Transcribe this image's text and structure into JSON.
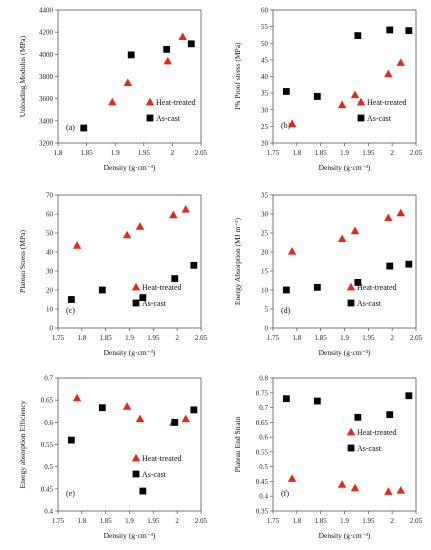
{
  "chart_data": [
    {
      "type": "scatter",
      "panel_label": "(a)",
      "xlabel": "Density (g·cm⁻³)",
      "ylabel": "Unloading Modulus (MPa)",
      "xlim": [
        1.8,
        2.05
      ],
      "ylim": [
        3200,
        4400
      ],
      "x_ticks": [
        1.8,
        1.85,
        1.9,
        1.95,
        2.0,
        2.05
      ],
      "x_tick_labels": [
        "1.8",
        "1.85",
        "1.9",
        "1.95",
        "2",
        "2.05"
      ],
      "y_ticks": [
        3200,
        3400,
        3600,
        3800,
        4000,
        4200,
        4400
      ],
      "y_tick_labels": [
        "3200",
        "3400",
        "3600",
        "3800",
        "4000",
        "4200",
        "4400"
      ],
      "legend_position": "right",
      "series": [
        {
          "name": "Heat-treated",
          "marker": "triangle",
          "color": "#e8261e",
          "x": [
            1.895,
            1.922,
            1.992,
            2.018
          ],
          "y": [
            3570,
            3745,
            3940,
            4160
          ]
        },
        {
          "name": "As-cast",
          "marker": "square",
          "color": "#000000",
          "x": [
            1.845,
            1.928,
            1.99,
            2.033
          ],
          "y": [
            3335,
            3995,
            4045,
            4095
          ]
        }
      ]
    },
    {
      "type": "scatter",
      "panel_label": "(b)",
      "xlabel": "Density (g·cm⁻³)",
      "ylabel": "1% Proof stress (MPa)",
      "xlim": [
        1.75,
        2.05
      ],
      "ylim": [
        20,
        60
      ],
      "x_ticks": [
        1.75,
        1.8,
        1.85,
        1.9,
        1.95,
        2.0,
        2.05
      ],
      "x_tick_labels": [
        "1.75",
        "1.8",
        "1.85",
        "1.9",
        "1.95",
        "2",
        "2.05"
      ],
      "y_ticks": [
        20,
        25,
        30,
        35,
        40,
        45,
        50,
        55,
        60
      ],
      "y_tick_labels": [
        "20",
        "25",
        "30",
        "35",
        "40",
        "45",
        "50",
        "55",
        "60"
      ],
      "legend_position": "right",
      "series": [
        {
          "name": "Heat-treated",
          "marker": "triangle",
          "color": "#e8261e",
          "x": [
            1.79,
            1.895,
            1.922,
            1.992,
            2.018
          ],
          "y": [
            25.8,
            31.5,
            34.5,
            40.8,
            44.2
          ]
        },
        {
          "name": "As-cast",
          "marker": "square",
          "color": "#000000",
          "x": [
            1.778,
            1.843,
            1.928,
            1.995,
            2.035
          ],
          "y": [
            35.5,
            34.0,
            52.3,
            54.0,
            53.8
          ]
        }
      ]
    },
    {
      "type": "scatter",
      "panel_label": "(c)",
      "xlabel": "Density (g·cm⁻³)",
      "ylabel": "Plateau Stress (MPa)",
      "xlim": [
        1.75,
        2.05
      ],
      "ylim": [
        0,
        70
      ],
      "x_ticks": [
        1.75,
        1.8,
        1.85,
        1.9,
        1.95,
        2.0,
        2.05
      ],
      "x_tick_labels": [
        "1.75",
        "1.8",
        "1.85",
        "1.9",
        "1.95",
        "2",
        "2.05"
      ],
      "y_ticks": [
        0,
        10,
        20,
        30,
        40,
        50,
        60,
        70
      ],
      "y_tick_labels": [
        "0",
        "10",
        "20",
        "30",
        "40",
        "50",
        "60",
        "70"
      ],
      "legend_position": "right",
      "series": [
        {
          "name": "Heat-treated",
          "marker": "triangle",
          "color": "#e8261e",
          "x": [
            1.79,
            1.895,
            1.922,
            1.992,
            2.018
          ],
          "y": [
            43.5,
            49.0,
            53.5,
            59.5,
            62.5
          ]
        },
        {
          "name": "As-cast",
          "marker": "square",
          "color": "#000000",
          "x": [
            1.778,
            1.843,
            1.928,
            1.995,
            2.035
          ],
          "y": [
            15.0,
            20.0,
            16.0,
            26.0,
            33.0
          ]
        }
      ]
    },
    {
      "type": "scatter",
      "panel_label": "(d)",
      "xlabel": "Density (g·cm⁻³)",
      "ylabel": "Energy Absorption (MJ m⁻³)",
      "xlim": [
        1.75,
        2.05
      ],
      "ylim": [
        0,
        35
      ],
      "x_ticks": [
        1.75,
        1.8,
        1.85,
        1.9,
        1.95,
        2.0,
        2.05
      ],
      "x_tick_labels": [
        "1.75",
        "1.8",
        "1.85",
        "1.9",
        "1.95",
        "2",
        "2.05"
      ],
      "y_ticks": [
        0,
        5,
        10,
        15,
        20,
        25,
        30,
        35
      ],
      "y_tick_labels": [
        "0",
        "5",
        "10",
        "15",
        "20",
        "25",
        "30",
        "35"
      ],
      "legend_position": "right",
      "series": [
        {
          "name": "Heat-treated",
          "marker": "triangle",
          "color": "#e8261e",
          "x": [
            1.79,
            1.895,
            1.922,
            1.992,
            2.018
          ],
          "y": [
            20.2,
            23.5,
            25.6,
            29.0,
            30.3
          ]
        },
        {
          "name": "As-cast",
          "marker": "square",
          "color": "#000000",
          "x": [
            1.778,
            1.843,
            1.928,
            1.995,
            2.035
          ],
          "y": [
            10.0,
            10.7,
            12.0,
            16.3,
            16.8
          ]
        }
      ]
    },
    {
      "type": "scatter",
      "panel_label": "(e)",
      "xlabel": "Density (g·cm⁻³)",
      "ylabel": "Energy absorption Efficiency",
      "xlim": [
        1.75,
        2.05
      ],
      "ylim": [
        0.4,
        0.7
      ],
      "x_ticks": [
        1.75,
        1.8,
        1.85,
        1.9,
        1.95,
        2.0,
        2.05
      ],
      "x_tick_labels": [
        "1.75",
        "1.8",
        "1.85",
        "1.9",
        "1.95",
        "2",
        "2.05"
      ],
      "y_ticks": [
        0.4,
        0.45,
        0.5,
        0.55,
        0.6,
        0.65,
        0.7
      ],
      "y_tick_labels": [
        "0.4",
        "0.45",
        "0.5",
        "0.55",
        "0.6",
        "0.65",
        "0.7"
      ],
      "legend_position": "right",
      "series": [
        {
          "name": "Heat-treated",
          "marker": "triangle",
          "color": "#e8261e",
          "x": [
            1.79,
            1.895,
            1.922,
            1.992,
            2.018
          ],
          "y": [
            0.655,
            0.636,
            0.608,
            0.6,
            0.608
          ]
        },
        {
          "name": "As-cast",
          "marker": "square",
          "color": "#000000",
          "x": [
            1.778,
            1.843,
            1.928,
            1.995,
            2.035
          ],
          "y": [
            0.56,
            0.633,
            0.445,
            0.6,
            0.628
          ]
        }
      ]
    },
    {
      "type": "scatter",
      "panel_label": "(f)",
      "xlabel": "Density (g·cm⁻³)",
      "ylabel": "Plateau End Strain",
      "xlim": [
        1.75,
        2.05
      ],
      "ylim": [
        0.35,
        0.8
      ],
      "x_ticks": [
        1.75,
        1.8,
        1.85,
        1.9,
        1.95,
        2.0,
        2.05
      ],
      "x_tick_labels": [
        "1.75",
        "1.8",
        "1.85",
        "1.9",
        "1.95",
        "2",
        "2.05"
      ],
      "y_ticks": [
        0.35,
        0.4,
        0.45,
        0.5,
        0.55,
        0.6,
        0.65,
        0.7,
        0.75,
        0.8
      ],
      "y_tick_labels": [
        "0.35",
        "0.4",
        "0.45",
        "0.5",
        "0.55",
        "0.6",
        "0.65",
        "0.7",
        "0.75",
        "0.8"
      ],
      "legend_position": "right",
      "series": [
        {
          "name": "Heat-treated",
          "marker": "triangle",
          "color": "#e8261e",
          "x": [
            1.79,
            1.895,
            1.922,
            1.992,
            2.018
          ],
          "y": [
            0.46,
            0.44,
            0.428,
            0.416,
            0.42
          ]
        },
        {
          "name": "As-cast",
          "marker": "square",
          "color": "#000000",
          "x": [
            1.778,
            1.843,
            1.928,
            1.995,
            2.035
          ],
          "y": [
            0.73,
            0.722,
            0.667,
            0.676,
            0.74
          ]
        }
      ]
    }
  ]
}
